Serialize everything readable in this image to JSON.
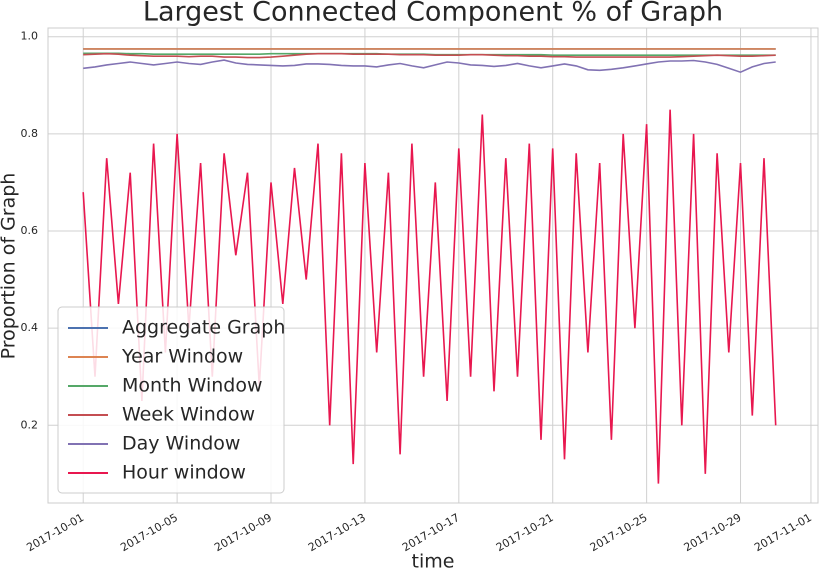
{
  "chart_data": {
    "type": "line",
    "title": "Largest Connected Component % of Graph",
    "xlabel": "time",
    "ylabel": "Proportion of Graph",
    "x": [
      0,
      0.5,
      1,
      1.5,
      2,
      2.5,
      3,
      3.5,
      4,
      4.5,
      5,
      5.5,
      6,
      6.5,
      7,
      7.5,
      8,
      8.5,
      9,
      9.5,
      10,
      10.5,
      11,
      11.5,
      12,
      12.5,
      13,
      13.5,
      14,
      14.5,
      15,
      15.5,
      16,
      16.5,
      17,
      17.5,
      18,
      18.5,
      19,
      19.5,
      20,
      20.5,
      21,
      21.5,
      22,
      22.5,
      23,
      23.5,
      24,
      24.5,
      25,
      25.5,
      26,
      26.5,
      27,
      27.5,
      28,
      28.5,
      29,
      29.5
    ],
    "series": [
      {
        "name": "Aggregate Graph",
        "color": "#4c72b0",
        "values": [
          0.975,
          0.975,
          0.975,
          0.975,
          0.975,
          0.975,
          0.975,
          0.975,
          0.975,
          0.975,
          0.975,
          0.975,
          0.975,
          0.975,
          0.975,
          0.975,
          0.975,
          0.975,
          0.975,
          0.975,
          0.975,
          0.975,
          0.975,
          0.975,
          0.975,
          0.975,
          0.975,
          0.975,
          0.975,
          0.975,
          0.975,
          0.975,
          0.975,
          0.975,
          0.975,
          0.975,
          0.975,
          0.975,
          0.975,
          0.975,
          0.975,
          0.975,
          0.975,
          0.975,
          0.975,
          0.975,
          0.975,
          0.975,
          0.975,
          0.975,
          0.975,
          0.975,
          0.975,
          0.975,
          0.975,
          0.975,
          0.975,
          0.975,
          0.975,
          0.975
        ]
      },
      {
        "name": "Year Window",
        "color": "#dd8452",
        "values": [
          0.975,
          0.975,
          0.975,
          0.975,
          0.975,
          0.975,
          0.975,
          0.975,
          0.975,
          0.975,
          0.975,
          0.975,
          0.975,
          0.975,
          0.975,
          0.975,
          0.975,
          0.975,
          0.975,
          0.975,
          0.975,
          0.975,
          0.975,
          0.975,
          0.975,
          0.975,
          0.975,
          0.975,
          0.975,
          0.975,
          0.975,
          0.975,
          0.975,
          0.975,
          0.975,
          0.975,
          0.975,
          0.975,
          0.975,
          0.975,
          0.975,
          0.975,
          0.975,
          0.975,
          0.975,
          0.975,
          0.975,
          0.975,
          0.975,
          0.975,
          0.975,
          0.975,
          0.975,
          0.975,
          0.975,
          0.975,
          0.975,
          0.975,
          0.975,
          0.975
        ]
      },
      {
        "name": "Month Window",
        "color": "#55a868",
        "values": [
          0.966,
          0.966,
          0.966,
          0.966,
          0.965,
          0.965,
          0.964,
          0.964,
          0.964,
          0.964,
          0.964,
          0.964,
          0.964,
          0.964,
          0.964,
          0.964,
          0.965,
          0.965,
          0.965,
          0.965,
          0.965,
          0.965,
          0.965,
          0.965,
          0.965,
          0.965,
          0.964,
          0.964,
          0.964,
          0.964,
          0.963,
          0.963,
          0.963,
          0.963,
          0.963,
          0.963,
          0.963,
          0.963,
          0.963,
          0.963,
          0.962,
          0.962,
          0.962,
          0.962,
          0.962,
          0.962,
          0.962,
          0.962,
          0.962,
          0.962,
          0.962,
          0.962,
          0.962,
          0.962,
          0.962,
          0.962,
          0.962,
          0.962,
          0.962,
          0.962
        ]
      },
      {
        "name": "Week Window",
        "color": "#c44e52",
        "values": [
          0.963,
          0.964,
          0.965,
          0.964,
          0.962,
          0.961,
          0.96,
          0.96,
          0.96,
          0.959,
          0.96,
          0.96,
          0.958,
          0.958,
          0.957,
          0.957,
          0.958,
          0.96,
          0.962,
          0.964,
          0.965,
          0.965,
          0.965,
          0.964,
          0.964,
          0.964,
          0.964,
          0.963,
          0.963,
          0.963,
          0.962,
          0.962,
          0.962,
          0.963,
          0.963,
          0.962,
          0.961,
          0.961,
          0.96,
          0.96,
          0.959,
          0.959,
          0.958,
          0.958,
          0.958,
          0.958,
          0.958,
          0.958,
          0.958,
          0.958,
          0.958,
          0.959,
          0.96,
          0.961,
          0.962,
          0.961,
          0.96,
          0.96,
          0.961,
          0.962
        ]
      },
      {
        "name": "Day Window",
        "color": "#8172b3",
        "values": [
          0.935,
          0.938,
          0.942,
          0.945,
          0.948,
          0.945,
          0.942,
          0.945,
          0.948,
          0.945,
          0.943,
          0.948,
          0.952,
          0.946,
          0.943,
          0.942,
          0.941,
          0.94,
          0.941,
          0.944,
          0.944,
          0.943,
          0.941,
          0.94,
          0.94,
          0.938,
          0.942,
          0.945,
          0.94,
          0.936,
          0.942,
          0.948,
          0.946,
          0.942,
          0.941,
          0.939,
          0.941,
          0.945,
          0.94,
          0.936,
          0.94,
          0.944,
          0.94,
          0.932,
          0.931,
          0.933,
          0.936,
          0.94,
          0.944,
          0.948,
          0.95,
          0.95,
          0.951,
          0.948,
          0.943,
          0.935,
          0.927,
          0.938,
          0.945,
          0.948
        ]
      },
      {
        "name": "Hour window",
        "color": "#e8174f",
        "values": [
          0.68,
          0.3,
          0.75,
          0.45,
          0.72,
          0.25,
          0.78,
          0.35,
          0.8,
          0.4,
          0.74,
          0.3,
          0.76,
          0.55,
          0.72,
          0.28,
          0.7,
          0.45,
          0.73,
          0.5,
          0.78,
          0.2,
          0.76,
          0.12,
          0.74,
          0.35,
          0.72,
          0.14,
          0.78,
          0.3,
          0.7,
          0.25,
          0.77,
          0.3,
          0.84,
          0.27,
          0.75,
          0.3,
          0.78,
          0.17,
          0.77,
          0.13,
          0.76,
          0.35,
          0.74,
          0.17,
          0.8,
          0.4,
          0.82,
          0.08,
          0.85,
          0.2,
          0.8,
          0.1,
          0.76,
          0.35,
          0.74,
          0.22,
          0.75,
          0.2
        ]
      }
    ],
    "xlim": [
      -1.5,
      31.3
    ],
    "xticks": [
      {
        "value": 0,
        "label": "2017-10-01"
      },
      {
        "value": 4,
        "label": "2017-10-05"
      },
      {
        "value": 8,
        "label": "2017-10-09"
      },
      {
        "value": 12,
        "label": "2017-10-13"
      },
      {
        "value": 16,
        "label": "2017-10-17"
      },
      {
        "value": 20,
        "label": "2017-10-21"
      },
      {
        "value": 24,
        "label": "2017-10-25"
      },
      {
        "value": 28,
        "label": "2017-10-29"
      },
      {
        "value": 31,
        "label": "2017-11-01"
      }
    ],
    "ylim": [
      0.04,
      1.018
    ],
    "yticks": [
      0.2,
      0.4,
      0.6,
      0.8,
      {
        "value": 1,
        "label": "1.0"
      }
    ],
    "grid": true,
    "legend": "lower-left"
  }
}
